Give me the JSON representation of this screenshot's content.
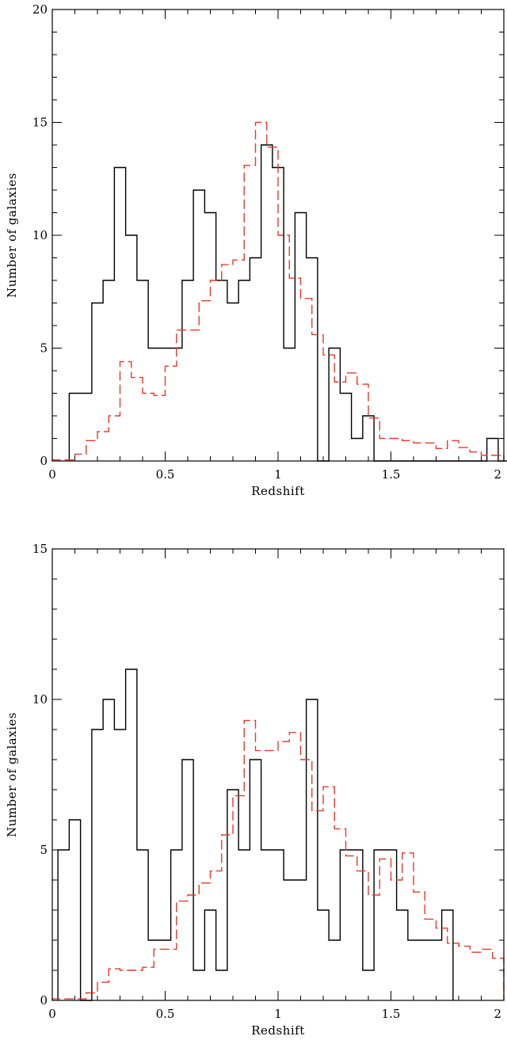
{
  "chart_data": [
    {
      "type": "histogram",
      "xlabel": "Redshift",
      "ylabel": "Number of galaxies",
      "xlim": [
        0,
        2
      ],
      "ylim": [
        0,
        20
      ],
      "x_ticks": [
        "0",
        "0.5",
        "1",
        "1.5",
        "2"
      ],
      "y_ticks": [
        "0",
        "5",
        "10",
        "15",
        "20"
      ],
      "bin_width": 0.05,
      "series": [
        {
          "style": "solid",
          "color": "#000000",
          "bin_start": 0.075,
          "values": [
            3,
            3,
            7,
            8,
            13,
            10,
            8,
            5,
            5,
            5,
            8,
            12,
            11,
            8,
            7,
            8,
            9,
            14,
            13,
            5,
            11,
            9,
            0,
            5,
            3,
            1,
            2,
            0,
            0,
            0,
            0,
            0,
            0,
            0,
            0,
            0,
            0,
            1,
            0
          ]
        },
        {
          "style": "dashed",
          "color": "#e8392b",
          "bin_start": 0.0,
          "values": [
            0.05,
            0.05,
            0.3,
            0.9,
            1.3,
            2.0,
            4.4,
            3.7,
            3.0,
            2.9,
            4.2,
            5.8,
            5.8,
            7.1,
            8.0,
            8.7,
            8.9,
            13.1,
            15.0,
            13.9,
            10.0,
            8.1,
            7.2,
            5.6,
            4.7,
            3.5,
            3.9,
            3.4,
            1.9,
            1.0,
            1.0,
            0.9,
            0.8,
            0.8,
            0.55,
            0.9,
            0.6,
            0.4,
            0.25,
            0.25
          ]
        }
      ]
    },
    {
      "type": "histogram",
      "xlabel": "Redshift",
      "ylabel": "Number of galaxies",
      "xlim": [
        0,
        2
      ],
      "ylim": [
        0,
        15
      ],
      "x_ticks": [
        "0",
        "0.5",
        "1",
        "1.5",
        "2"
      ],
      "y_ticks": [
        "0",
        "5",
        "10",
        "15"
      ],
      "bin_width": 0.05,
      "series": [
        {
          "style": "solid",
          "color": "#000000",
          "bin_start": 0.025,
          "values": [
            5,
            6,
            0,
            9,
            10,
            9,
            11,
            5,
            2,
            2,
            5,
            8,
            1,
            3,
            1,
            7,
            5,
            8,
            5,
            5,
            4,
            4,
            10,
            3,
            2,
            5,
            5,
            1,
            5,
            5,
            3,
            2,
            2,
            2,
            3
          ]
        },
        {
          "style": "dashed",
          "color": "#e8392b",
          "bin_start": 0.0,
          "values": [
            0.05,
            0.05,
            0.05,
            0.25,
            0.6,
            1.05,
            1.0,
            1.0,
            1.1,
            1.7,
            1.7,
            3.3,
            3.5,
            3.9,
            4.3,
            5.5,
            6.8,
            9.3,
            8.3,
            8.3,
            8.6,
            8.9,
            8.0,
            6.3,
            7.1,
            5.7,
            4.8,
            4.3,
            3.5,
            4.7,
            4.0,
            4.9,
            3.6,
            2.7,
            2.4,
            1.9,
            1.8,
            1.6,
            1.7,
            1.4
          ]
        }
      ]
    }
  ]
}
